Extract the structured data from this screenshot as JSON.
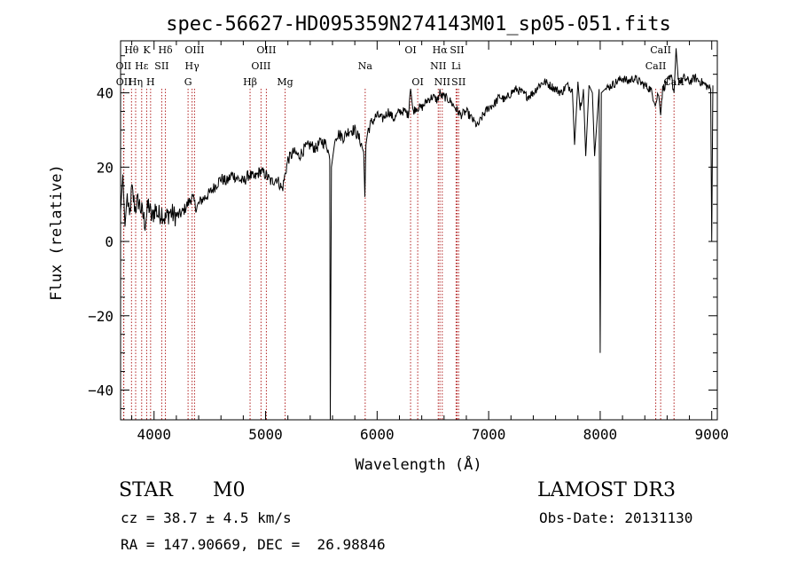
{
  "chart_data": {
    "type": "line",
    "title": "spec-56627-HD095359N274143M01_sp05-051.fits",
    "xlabel": "Wavelength (Å)",
    "ylabel": "Flux (relative)",
    "xlim": [
      3700,
      9050
    ],
    "ylim": [
      -48,
      54
    ],
    "x_ticks": [
      4000,
      5000,
      6000,
      7000,
      8000,
      9000
    ],
    "x_tick_labels": [
      "4000",
      "5000",
      "6000",
      "7000",
      "8000",
      "9000"
    ],
    "y_ticks": [
      -40,
      -20,
      0,
      20,
      40
    ],
    "y_tick_labels": [
      "−40",
      "−20",
      "0",
      "20",
      "40"
    ],
    "grid": false,
    "series": [
      {
        "name": "spectrum",
        "color": "#000000",
        "x": [
          3700,
          3720,
          3740,
          3760,
          3780,
          3800,
          3830,
          3860,
          3890,
          3920,
          3950,
          3980,
          4010,
          4040,
          4070,
          4100,
          4140,
          4180,
          4220,
          4260,
          4300,
          4340,
          4380,
          4420,
          4460,
          4500,
          4550,
          4600,
          4650,
          4700,
          4750,
          4800,
          4850,
          4900,
          4950,
          5000,
          5050,
          5100,
          5150,
          5200,
          5250,
          5300,
          5350,
          5400,
          5450,
          5500,
          5550,
          5575,
          5580,
          5590,
          5620,
          5650,
          5700,
          5750,
          5800,
          5850,
          5880,
          5890,
          5900,
          5920,
          5950,
          6000,
          6050,
          6100,
          6150,
          6200,
          6250,
          6280,
          6300,
          6320,
          6350,
          6400,
          6450,
          6500,
          6540,
          6563,
          6580,
          6600,
          6650,
          6700,
          6750,
          6800,
          6850,
          6900,
          6950,
          7000,
          7050,
          7100,
          7150,
          7200,
          7250,
          7300,
          7350,
          7400,
          7450,
          7500,
          7550,
          7600,
          7650,
          7700,
          7750,
          7770,
          7800,
          7820,
          7850,
          7870,
          7900,
          7930,
          7950,
          7990,
          8000,
          8010,
          8050,
          8100,
          8150,
          8200,
          8250,
          8300,
          8350,
          8400,
          8450,
          8498,
          8520,
          8542,
          8560,
          8600,
          8640,
          8662,
          8680,
          8700,
          8720,
          8750,
          8800,
          8850,
          8900,
          8950,
          8990,
          9000,
          9010
        ],
        "values": [
          8,
          18,
          4,
          12,
          6,
          14,
          9,
          11,
          8,
          5,
          10,
          6,
          9,
          7,
          8,
          6,
          8,
          7,
          7,
          8,
          10,
          12,
          9,
          11,
          12,
          13,
          15,
          17,
          16,
          18,
          17,
          16,
          18,
          17,
          19,
          18,
          16,
          17,
          14,
          22,
          24,
          23,
          25,
          26,
          25,
          27,
          26,
          22,
          -48,
          20,
          28,
          29,
          28,
          30,
          30,
          27,
          24,
          12,
          26,
          30,
          32,
          34,
          33,
          35,
          33,
          35,
          35,
          34,
          42,
          35,
          36,
          36,
          38,
          39,
          38,
          40,
          39,
          39,
          38,
          36,
          34,
          35,
          33,
          31,
          34,
          36,
          37,
          39,
          38,
          40,
          41,
          40,
          39,
          40,
          42,
          43,
          42,
          41,
          40,
          42,
          41,
          26,
          43,
          36,
          41,
          23,
          42,
          40,
          23,
          41,
          -30,
          40,
          41,
          42,
          43,
          44,
          43,
          44,
          43,
          42,
          41,
          37,
          40,
          35,
          41,
          43,
          44,
          40,
          52,
          44,
          43,
          44,
          43,
          44,
          43,
          42,
          41,
          0,
          42
        ]
      }
    ],
    "line_markers": [
      {
        "label": "Hθ",
        "x": 3798,
        "row": 0
      },
      {
        "label": "OII",
        "x": 3727,
        "row": 1
      },
      {
        "label": "OII",
        "x": 3729,
        "row": 2
      },
      {
        "label": "Hη",
        "x": 3835,
        "row": 2
      },
      {
        "label": "Hε",
        "x": 3889,
        "row": 1
      },
      {
        "label": "K",
        "x": 3934,
        "row": 0
      },
      {
        "label": "SII",
        "x": 4069,
        "row": 1
      },
      {
        "label": "H",
        "x": 3969,
        "row": 2
      },
      {
        "label": "Hδ",
        "x": 4102,
        "row": 0
      },
      {
        "label": "OIII",
        "x": 4363,
        "row": 0
      },
      {
        "label": "Hγ",
        "x": 4341,
        "row": 1
      },
      {
        "label": "G",
        "x": 4305,
        "row": 2
      },
      {
        "label": "OIII",
        "x": 5007,
        "row": 0
      },
      {
        "label": "OIII",
        "x": 4959,
        "row": 1
      },
      {
        "label": "Hβ",
        "x": 4861,
        "row": 2
      },
      {
        "label": "Mg",
        "x": 5175,
        "row": 2
      },
      {
        "label": "Na",
        "x": 5893,
        "row": 1
      },
      {
        "label": "OI",
        "x": 6300,
        "row": 0
      },
      {
        "label": "OI",
        "x": 6364,
        "row": 2
      },
      {
        "label": "Hα",
        "x": 6563,
        "row": 0
      },
      {
        "label": "NII",
        "x": 6548,
        "row": 1
      },
      {
        "label": "NII",
        "x": 6584,
        "row": 2
      },
      {
        "label": "SII",
        "x": 6717,
        "row": 0
      },
      {
        "label": "Li",
        "x": 6708,
        "row": 1
      },
      {
        "label": "SII",
        "x": 6731,
        "row": 2
      },
      {
        "label": "CaII",
        "x": 8542,
        "row": 0
      },
      {
        "label": "CaII",
        "x": 8498,
        "row": 1
      },
      {
        "label": "CaII",
        "x": 8662,
        "row": 2
      }
    ]
  },
  "info": {
    "object_class": "STAR",
    "subclass": "M0",
    "survey": "LAMOST DR3",
    "cz": "cz = 38.7 ± 4.5 km/s",
    "obs_date": "Obs-Date: 20131130",
    "coords": "RA = 147.90669, DEC =  26.98846"
  }
}
